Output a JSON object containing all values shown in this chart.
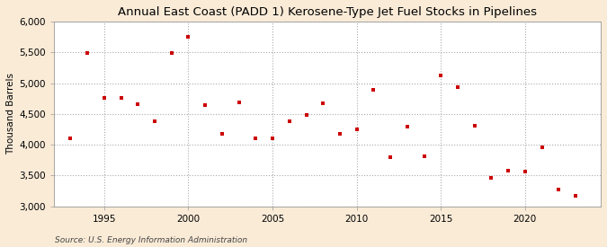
{
  "title": "Annual East Coast (PADD 1) Kerosene-Type Jet Fuel Stocks in Pipelines",
  "ylabel": "Thousand Barrels",
  "source": "Source: U.S. Energy Information Administration",
  "figure_background_color": "#faebd7",
  "plot_background_color": "#ffffff",
  "marker_color": "#cc0000",
  "years": [
    1993,
    1994,
    1995,
    1996,
    1997,
    1998,
    1999,
    2000,
    2001,
    2002,
    2003,
    2004,
    2005,
    2006,
    2007,
    2008,
    2009,
    2010,
    2011,
    2012,
    2013,
    2014,
    2015,
    2016,
    2017,
    2018,
    2019,
    2020,
    2021,
    2022,
    2023
  ],
  "values": [
    4100,
    5490,
    4760,
    4760,
    4660,
    4380,
    5490,
    5750,
    4650,
    4180,
    4680,
    4110,
    4100,
    4380,
    4490,
    4670,
    4170,
    4250,
    4890,
    3800,
    4290,
    3820,
    5120,
    4940,
    4310,
    3470,
    3580,
    3560,
    3960,
    3280,
    3170
  ],
  "ylim": [
    3000,
    6000
  ],
  "yticks": [
    3000,
    3500,
    4000,
    4500,
    5000,
    5500,
    6000
  ],
  "xlim": [
    1992.0,
    2024.5
  ],
  "xticks": [
    1995,
    2000,
    2005,
    2010,
    2015,
    2020
  ],
  "title_fontsize": 9.5,
  "tick_fontsize": 7.5,
  "ylabel_fontsize": 7.5,
  "source_fontsize": 6.5,
  "marker_size": 10
}
